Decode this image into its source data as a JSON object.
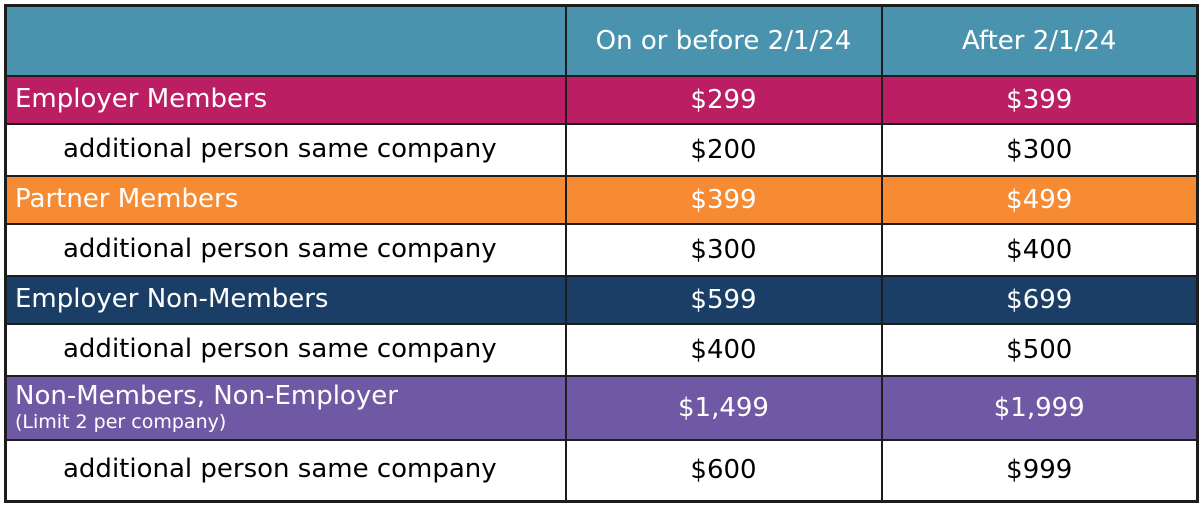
{
  "chart_data": {
    "type": "table",
    "title": "Registration pricing table",
    "columns": [
      "",
      "On or before 2/1/24",
      "After 2/1/24"
    ],
    "rows": [
      {
        "label": "Employer Members",
        "on_or_before": "$299",
        "after": "$399",
        "bg": "#BB1E62",
        "fg": "#FFFFFF"
      },
      {
        "label": "additional person same company",
        "on_or_before": "$200",
        "after": "$300",
        "bg": "#FFFFFF",
        "fg": "#000000"
      },
      {
        "label": "Partner Members",
        "on_or_before": "$399",
        "after": "$499",
        "bg": "#F68B33",
        "fg": "#FFFFFF"
      },
      {
        "label": "additional person same company",
        "on_or_before": "$300",
        "after": "$400",
        "bg": "#FFFFFF",
        "fg": "#000000"
      },
      {
        "label": "Employer Non-Members",
        "on_or_before": "$599",
        "after": "$699",
        "bg": "#1B3E66",
        "fg": "#FFFFFF"
      },
      {
        "label": "additional person same company",
        "on_or_before": "$400",
        "after": "$500",
        "bg": "#FFFFFF",
        "fg": "#000000"
      },
      {
        "label": "Non-Members, Non-Employer",
        "sublabel": "(Limit 2 per company)",
        "on_or_before": "$1,499",
        "after": "$1,999",
        "bg": "#7059A4",
        "fg": "#FFFFFF"
      },
      {
        "label": "additional person same company",
        "on_or_before": "$600",
        "after": "$999",
        "bg": "#FFFFFF",
        "fg": "#000000"
      }
    ],
    "layout": {
      "grid": "black borders on all cells",
      "legend": "none"
    }
  },
  "colors": {
    "header_bg": "#4A93AE",
    "employer_members_bg": "#BB1E62",
    "partner_members_bg": "#F68B33",
    "employer_non_members_bg": "#1B3E66",
    "non_members_bg": "#7059A4",
    "border": "#1D1D1D",
    "text_on_color": "#FFFFFF",
    "text_on_white": "#000000"
  }
}
